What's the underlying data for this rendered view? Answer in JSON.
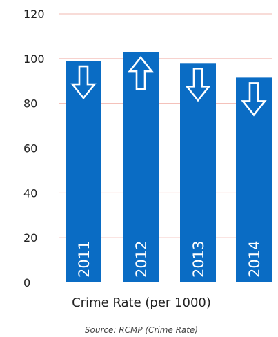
{
  "chart_data": {
    "type": "bar",
    "categories": [
      "2011",
      "2012",
      "2013",
      "2014"
    ],
    "values": [
      99,
      103,
      98,
      91.5
    ],
    "trend": [
      "down",
      "up",
      "down",
      "down"
    ],
    "title": "",
    "xlabel": "Crime Rate (per 1000)",
    "ylabel": "",
    "ylim": [
      0,
      120
    ],
    "yticks": [
      0,
      20,
      40,
      60,
      80,
      100,
      120
    ],
    "grid": true,
    "bar_color": "#0a6cc4",
    "grid_color": "#f2b8b0",
    "source": "Source: RCMP (Crime Rate)"
  }
}
